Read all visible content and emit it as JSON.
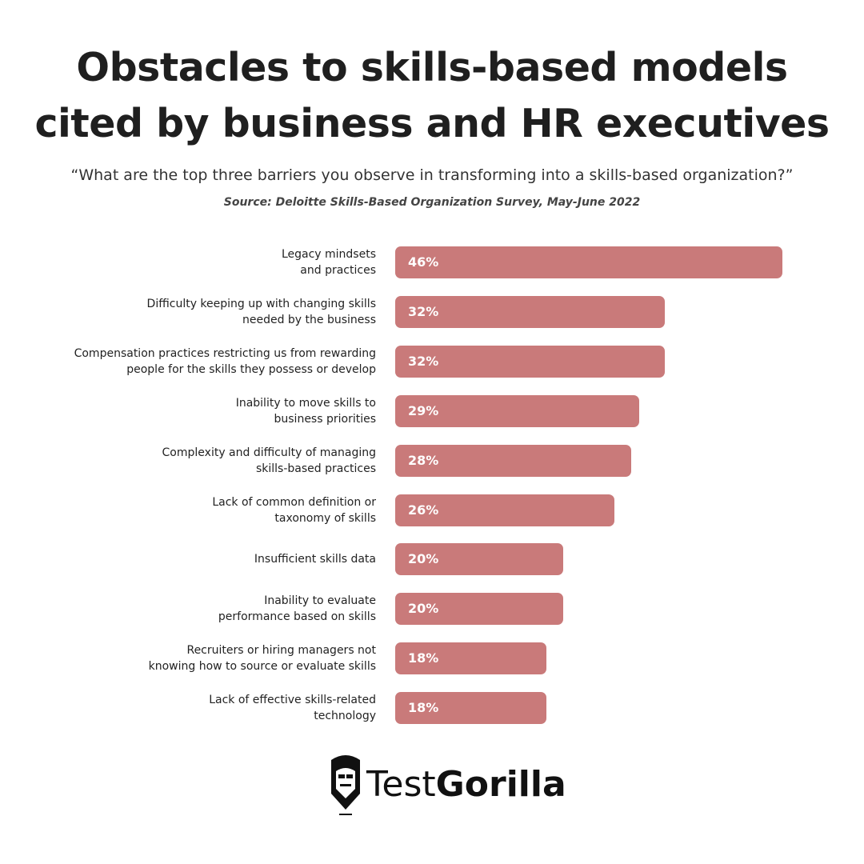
{
  "chart_data": {
    "type": "bar",
    "orientation": "horizontal",
    "title": "Obstacles to skills-based models\ncited by business and HR executives",
    "subtitle": "“What are the top three barriers you observe in transforming into a skills-based organization?”",
    "source": "Source: Deloitte Skills-Based Organization Survey, May-June 2022",
    "categories": [
      "Legacy mindsets\nand practices",
      "Difficulty keeping up with changing skills\nneeded by the business",
      "Compensation practices restricting us from rewarding\npeople for the skills they possess or develop",
      "Inability to move skills to\nbusiness priorities",
      "Complexity and difficulty of managing\nskills-based practices",
      "Lack of common definition or\ntaxonomy of skills",
      "Insufficient skills data",
      "Inability to evaluate\nperformance based on skills",
      "Recruiters or hiring managers not\nknowing how to source or evaluate skills",
      "Lack of effective skills-related\ntechnology"
    ],
    "values": [
      46,
      32,
      32,
      29,
      28,
      26,
      20,
      20,
      18,
      18
    ],
    "value_labels": [
      "46%",
      "32%",
      "32%",
      "29%",
      "28%",
      "26%",
      "20%",
      "20%",
      "18%",
      "18%"
    ],
    "color": "#c97a7a"
  },
  "logo": {
    "light": "Test",
    "bold": "Gorilla"
  }
}
